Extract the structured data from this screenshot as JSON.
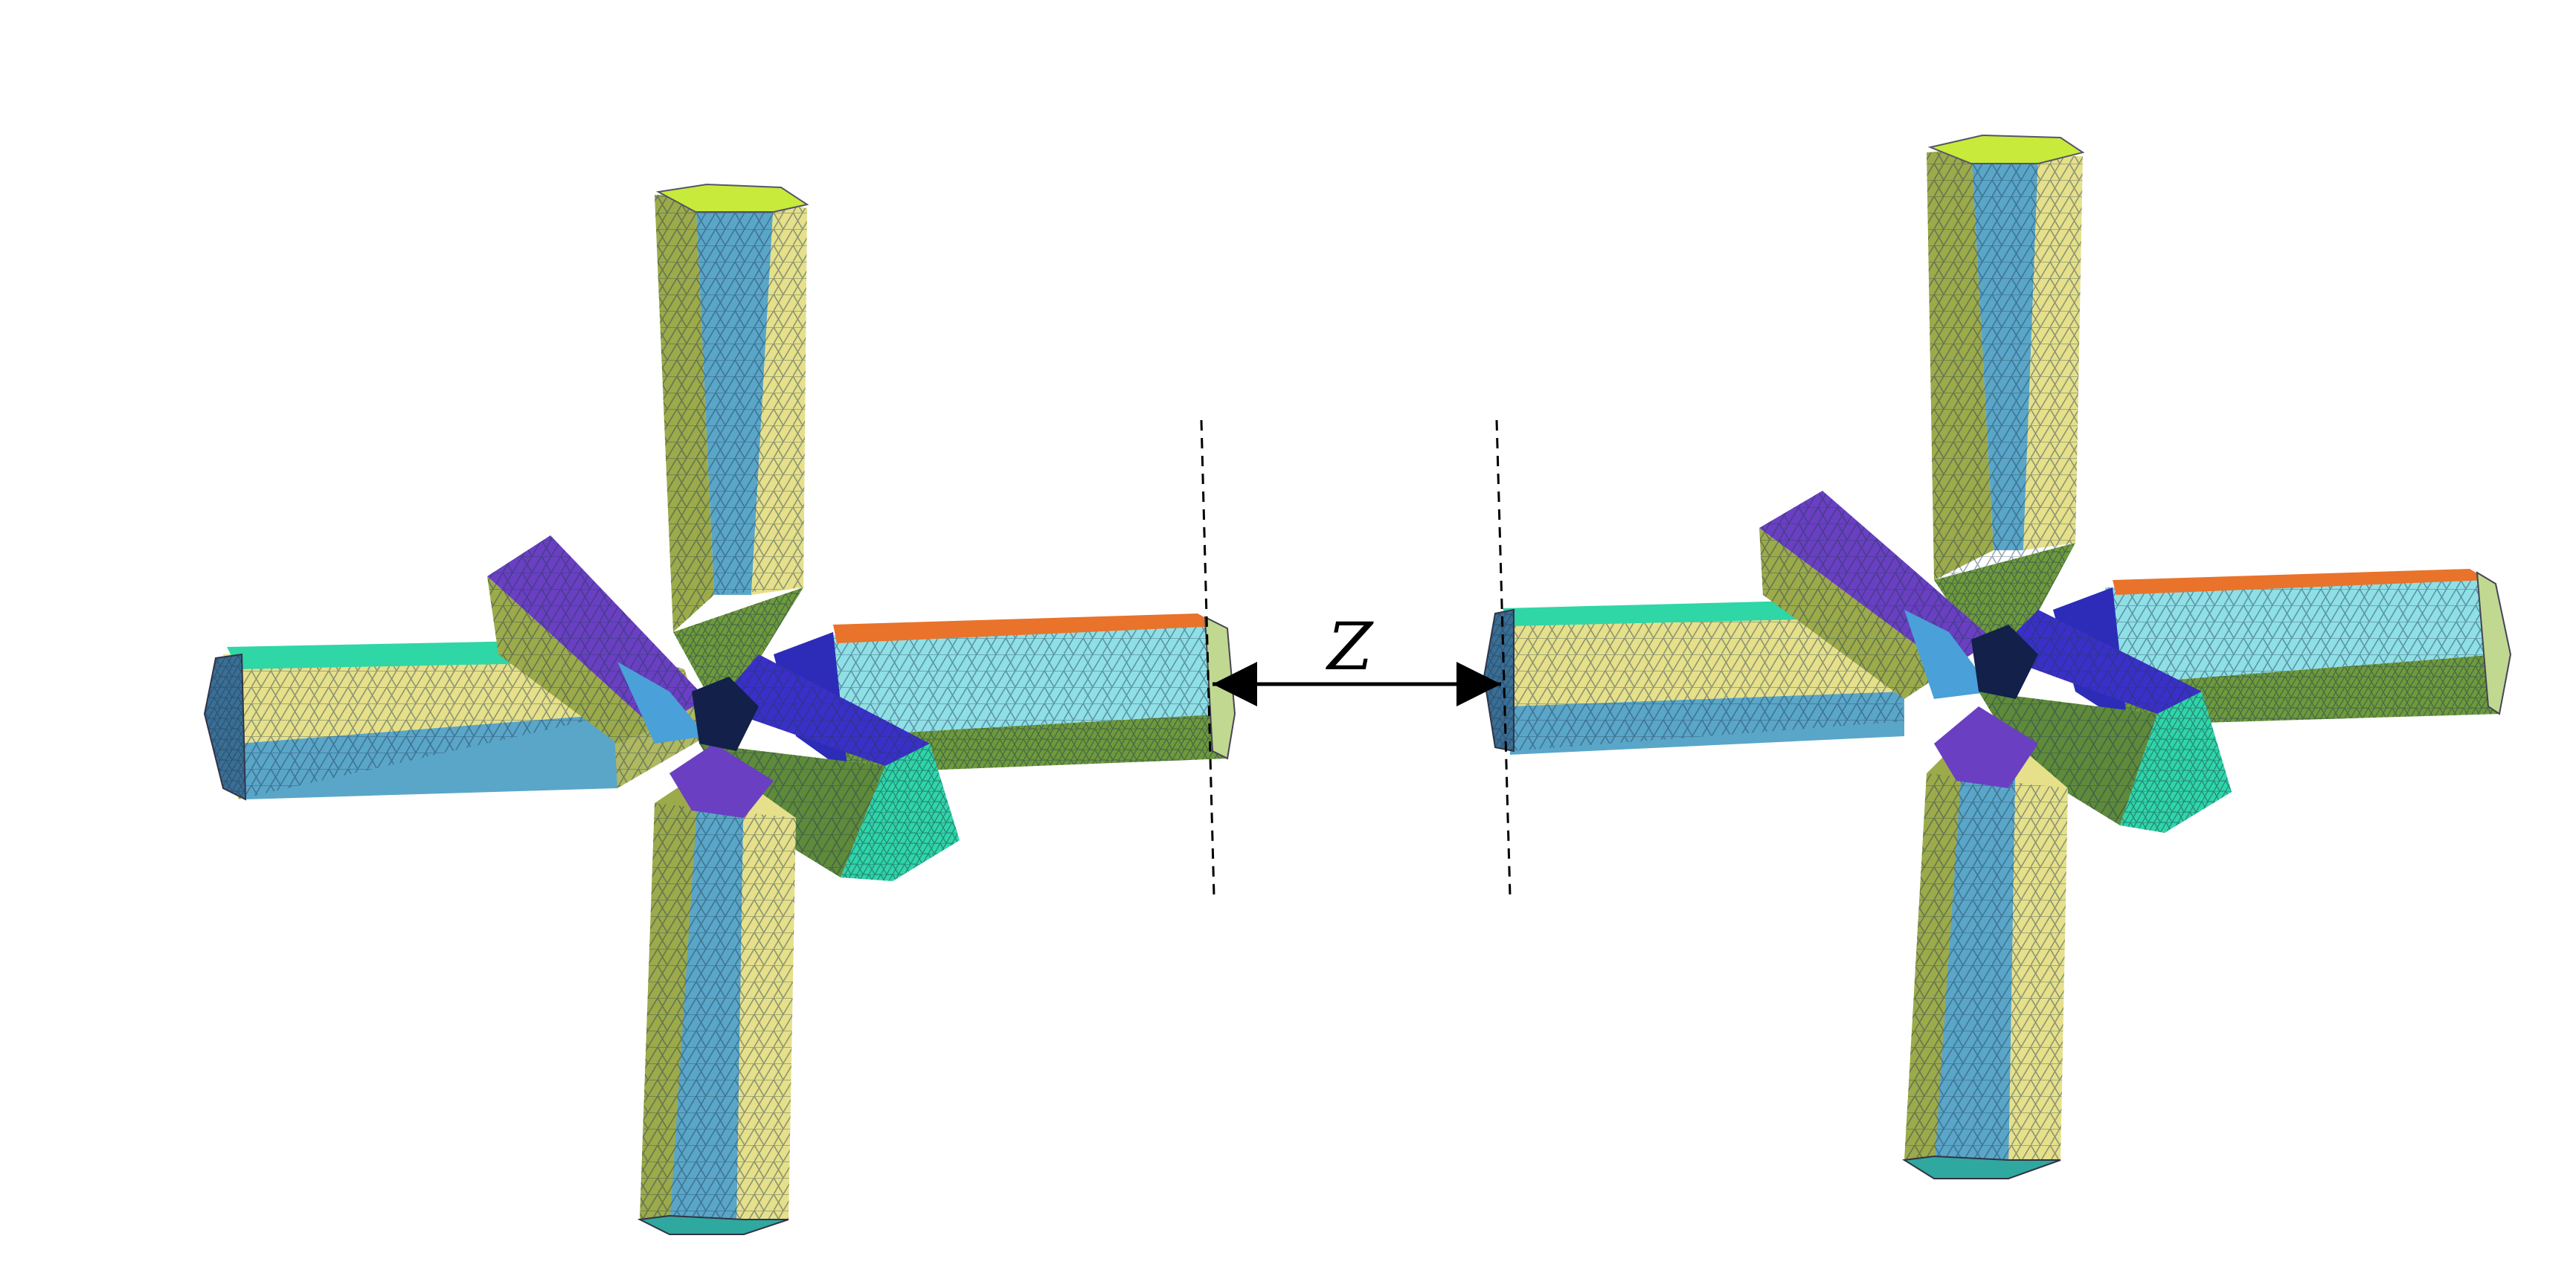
{
  "diagram": {
    "gap_label": "Z",
    "colors": {
      "teal": "#2fd6a6",
      "yellow": "#e6e08a",
      "blue": "#5aa6c8",
      "steel": "#4f8fb0",
      "purple": "#6a3fc2",
      "navy": "#2c2cb8",
      "orange": "#e9732a",
      "lime": "#c8ea3a",
      "olive": "#9caa4a",
      "green": "#6f9a3a",
      "cyan": "#8fe0e6",
      "mesh": "#1e3a55"
    },
    "objects": [
      {
        "name": "left-cross-mesh"
      },
      {
        "name": "right-cross-mesh"
      }
    ]
  }
}
